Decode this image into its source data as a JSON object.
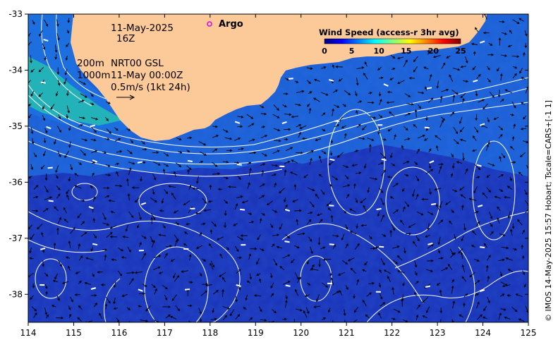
{
  "map": {
    "lon_range": [
      114,
      125
    ],
    "lat_range": [
      -38.5,
      -33
    ],
    "x_ticks": [
      "114",
      "115",
      "116",
      "117",
      "118",
      "119",
      "120",
      "121",
      "122",
      "123",
      "124",
      "125"
    ],
    "y_ticks": [
      "-33",
      "-34",
      "-35",
      "-36",
      "-37",
      "-38"
    ],
    "land_color": "#fcc998",
    "ocean_deep_color": "#1a33b8",
    "ocean_mid_color": "#1d6fe0",
    "ocean_shelf_color": "#24c3ae",
    "contour_color": "#ffffff",
    "arrow_color": "#000000"
  },
  "annotations": {
    "date": "11-May-2025",
    "time": "16Z",
    "depth_200": "200m",
    "depth_1000": "1000m",
    "product": "NRT00 GSL",
    "product_time": "11-May 00:00Z",
    "scale_text": "0.5m/s (1kt 24h)"
  },
  "argo": {
    "label": "Argo",
    "marker_color": "#e000e0"
  },
  "legend": {
    "title": "Wind Speed (access-r 3hr avg)",
    "ticks": [
      "0",
      "5",
      "10",
      "15",
      "20",
      "25"
    ],
    "colors": [
      "#00007f",
      "#0000ff",
      "#0080ff",
      "#00ffff",
      "#80ff80",
      "#ffff00",
      "#ff8000",
      "#ff0000",
      "#7f0000"
    ]
  },
  "credit": "© IMOS 14-May-2025 15:57 Hobart; Tscale=CARS+[-1 1]"
}
